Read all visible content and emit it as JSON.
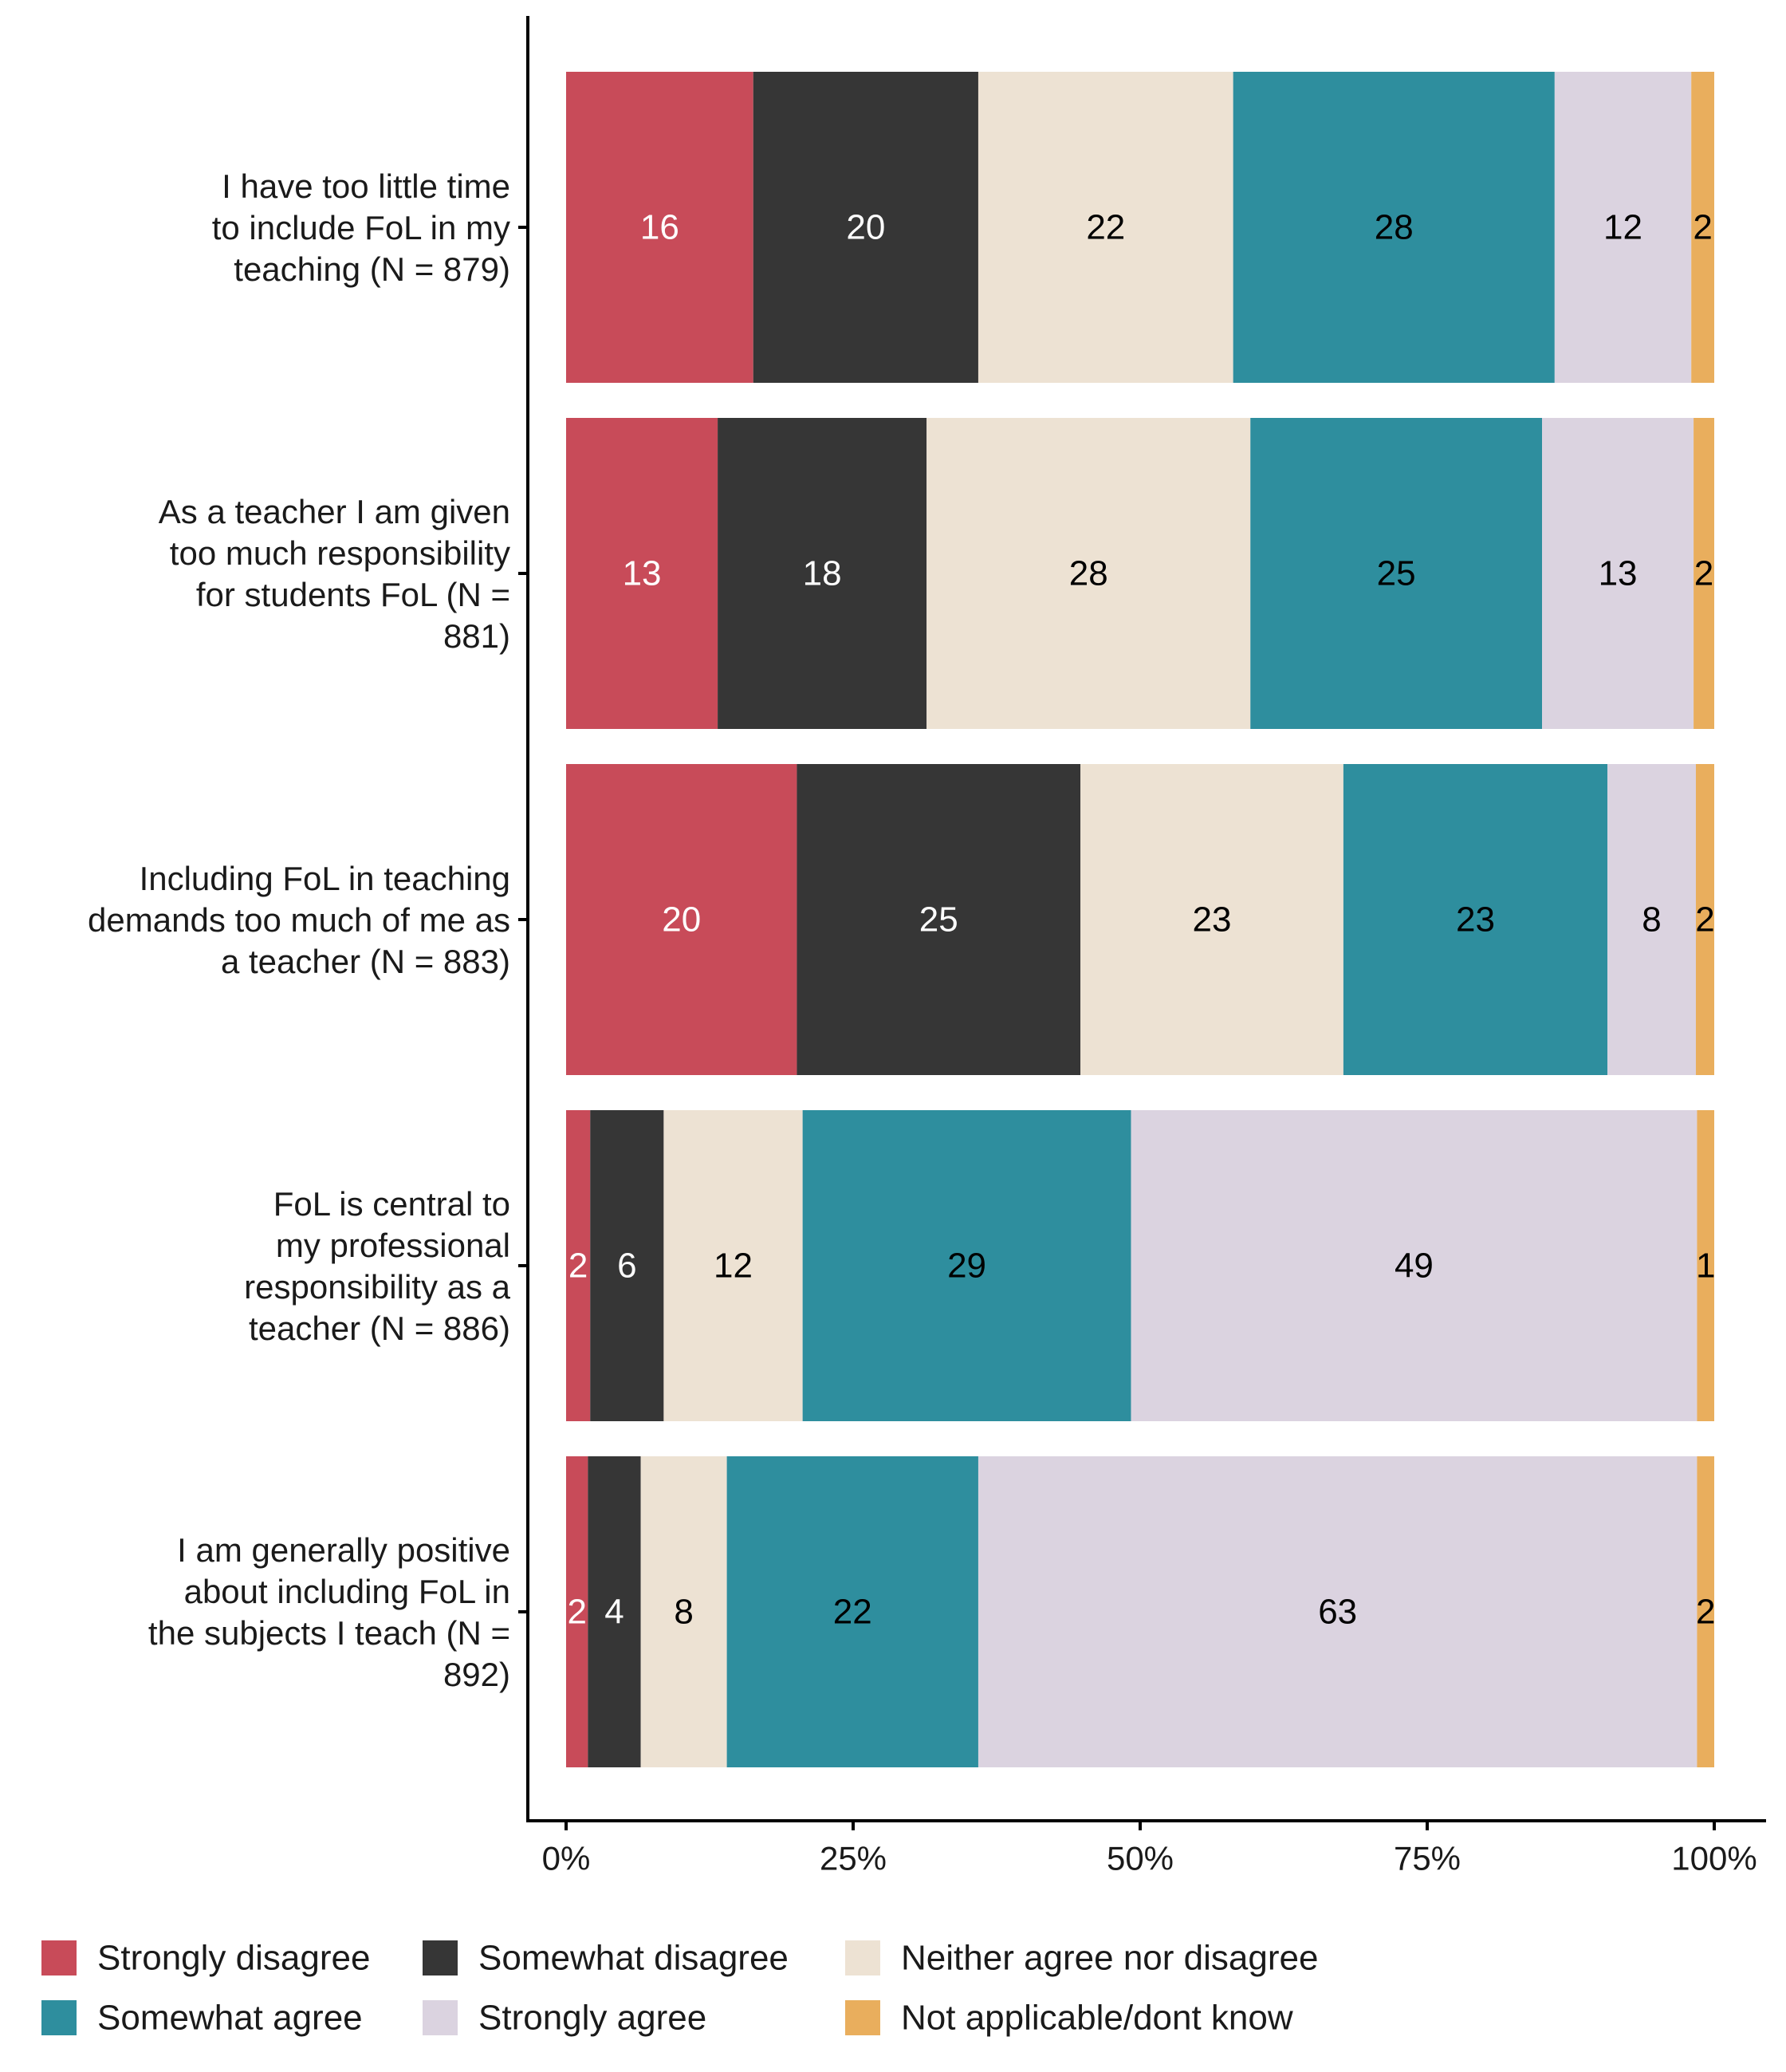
{
  "chart_data": {
    "type": "bar",
    "orientation": "horizontal",
    "stacked": true,
    "normalized": true,
    "categories": [
      "I have too little time to include FoL in my teaching (N = 879)",
      "As a teacher I am given too much responsibility for students FoL (N = 881)",
      "Including FoL in teaching demands too much of me as a teacher (N = 883)",
      "FoL is central to my professional responsibility as a teacher (N = 886)",
      "I am generally positive about including FoL in the subjects I teach (N = 892)"
    ],
    "category_lines": [
      [
        "I have too little time",
        "to include FoL in my",
        "teaching (N = 879)"
      ],
      [
        "As a teacher I am given",
        "too much responsibility",
        "for students FoL (N =",
        "881)"
      ],
      [
        "Including FoL in teaching",
        "demands too much of me as",
        "a teacher (N = 883)"
      ],
      [
        "FoL is central to",
        "my professional",
        "responsibility as a",
        "teacher (N = 886)"
      ],
      [
        "I am generally positive",
        "about including FoL in",
        "the subjects I teach (N =",
        "892)"
      ]
    ],
    "series": [
      {
        "name": "Strongly disagree",
        "color": "#c84b59",
        "label_color": "#ffffff",
        "values": [
          16.3,
          13.2,
          20.1,
          2.1,
          1.9
        ]
      },
      {
        "name": "Somewhat disagree",
        "color": "#363636",
        "label_color": "#ffffff",
        "values": [
          19.6,
          18.2,
          24.7,
          6.4,
          4.6
        ]
      },
      {
        "name": "Neither agree nor disagree",
        "color": "#ede2d3",
        "label_color": "#000000",
        "values": [
          22.2,
          28.2,
          22.9,
          12.1,
          7.5
        ]
      },
      {
        "name": "Somewhat agree",
        "color": "#2e8e9e",
        "label_color": "#000000",
        "values": [
          28.0,
          25.4,
          23.0,
          28.6,
          21.9
        ]
      },
      {
        "name": "Strongly agree",
        "color": "#dbd3e0",
        "label_color": "#000000",
        "values": [
          11.9,
          13.2,
          7.7,
          49.3,
          62.6
        ]
      },
      {
        "name": "Not applicable/dont know",
        "color": "#e9ae5d",
        "label_color": "#000000",
        "values": [
          2.0,
          1.8,
          1.6,
          1.5,
          1.5
        ]
      }
    ],
    "data_labels": [
      [
        "16",
        "20",
        "22",
        "28",
        "12",
        "2"
      ],
      [
        "13",
        "18",
        "28",
        "25",
        "13",
        "2"
      ],
      [
        "20",
        "25",
        "23",
        "23",
        "8",
        "2"
      ],
      [
        "2",
        "6",
        "12",
        "29",
        "49",
        "1"
      ],
      [
        "2",
        "4",
        "8",
        "22",
        "63",
        "2"
      ]
    ],
    "x_ticks": [
      0,
      25,
      50,
      75,
      100
    ],
    "x_tick_labels": [
      "0%",
      "25%",
      "50%",
      "75%",
      "100%"
    ],
    "xlim": [
      0,
      100
    ],
    "title": "",
    "xlabel": "",
    "ylabel": "",
    "grid": false,
    "legend_position": "bottom"
  }
}
